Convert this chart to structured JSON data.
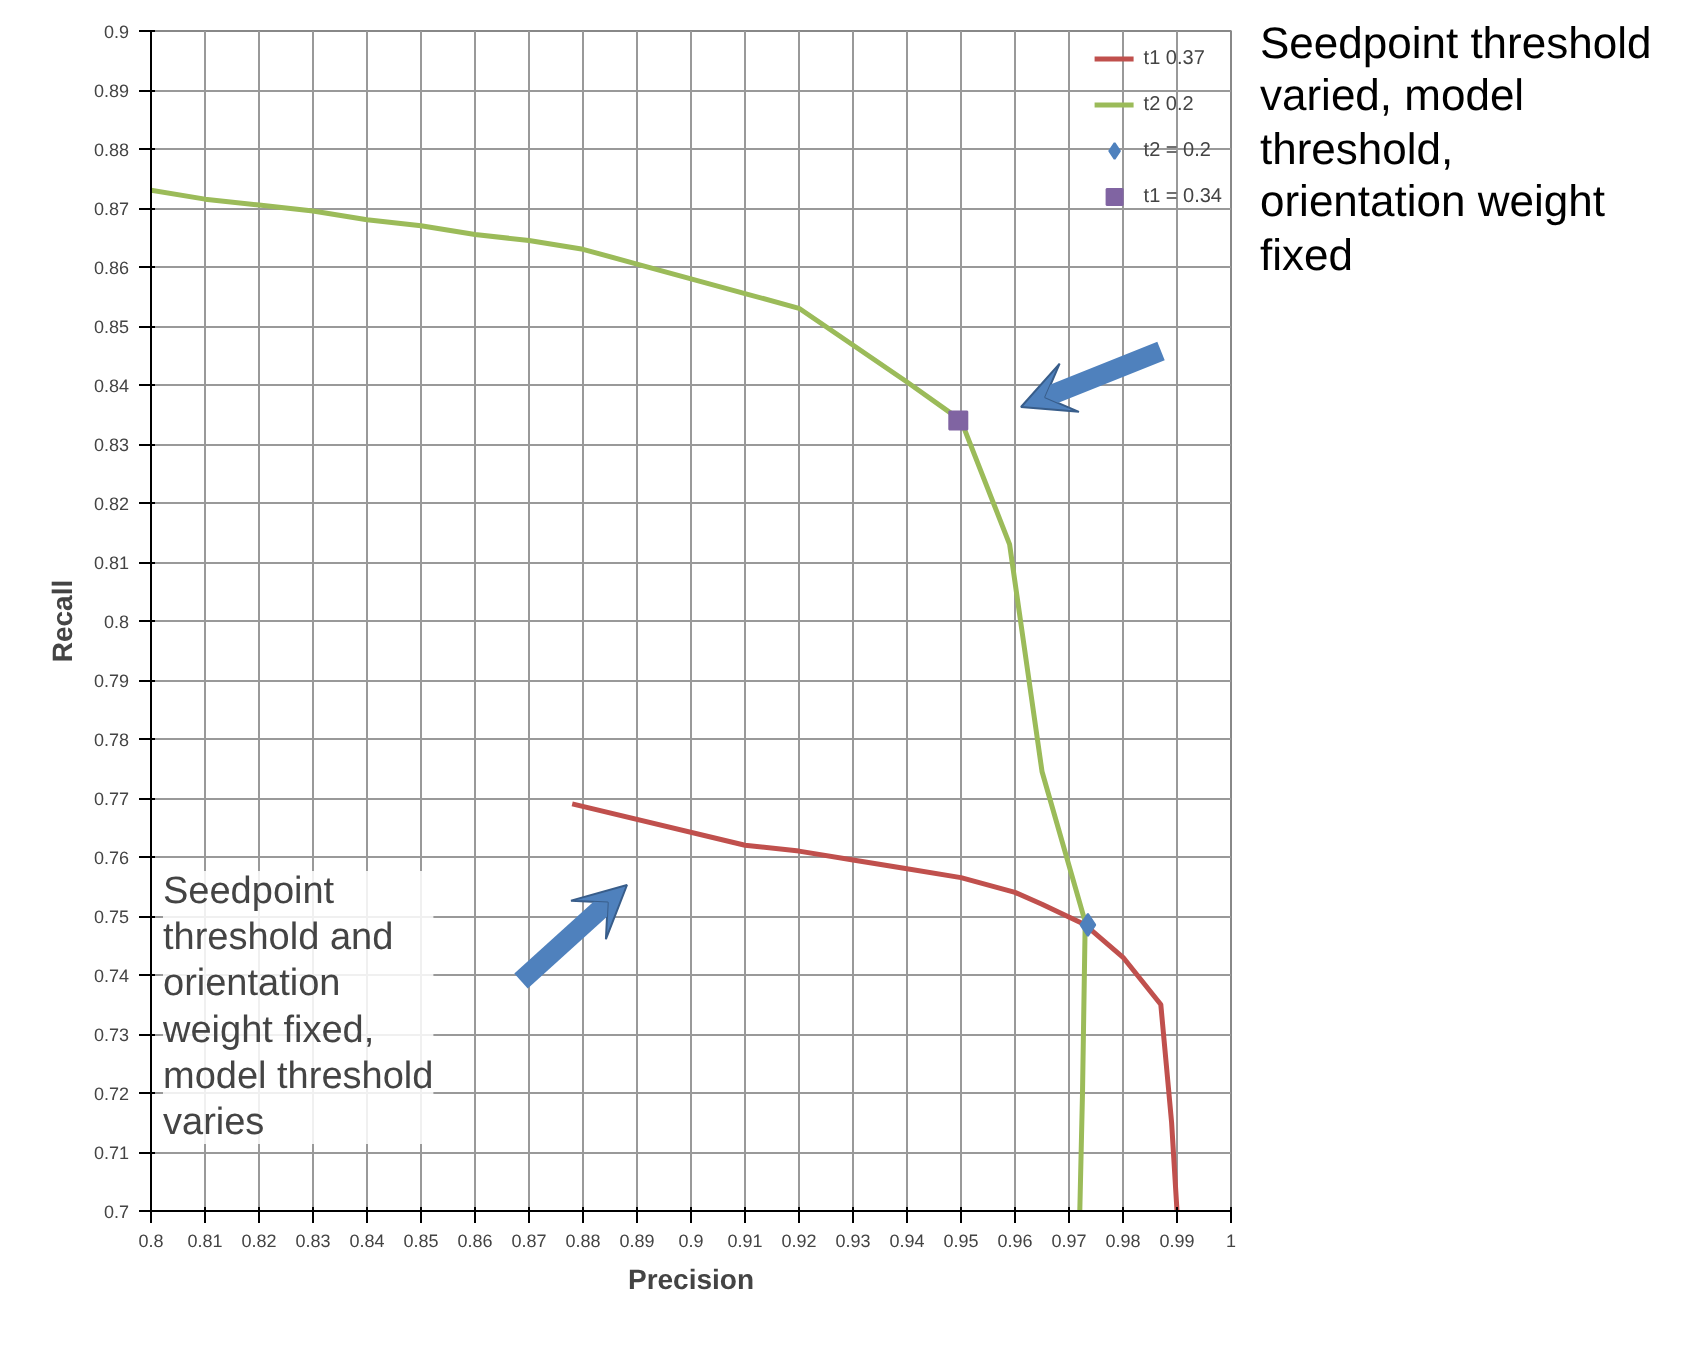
{
  "chart_data": {
    "type": "line",
    "xlabel": "Precision",
    "ylabel": "Recall",
    "xlim": [
      0.8,
      1
    ],
    "ylim": [
      0.7,
      0.9
    ],
    "xticks": [
      0.8,
      0.81,
      0.82,
      0.83,
      0.84,
      0.85,
      0.86,
      0.87,
      0.88,
      0.89,
      0.9,
      0.91,
      0.92,
      0.93,
      0.94,
      0.95,
      0.96,
      0.97,
      0.98,
      0.99,
      1
    ],
    "yticks": [
      0.7,
      0.71,
      0.72,
      0.73,
      0.74,
      0.75,
      0.76,
      0.77,
      0.78,
      0.79,
      0.8,
      0.81,
      0.82,
      0.83,
      0.84,
      0.85,
      0.86,
      0.87,
      0.88,
      0.89,
      0.9
    ],
    "grid": true,
    "legend": "top right",
    "series": [
      {
        "name": "t1 0.37",
        "color": "#c0504d",
        "x": [
          0.878,
          0.91,
          0.92,
          0.93,
          0.94,
          0.95,
          0.96,
          0.965,
          0.973,
          0.98,
          0.987,
          0.989,
          0.99
        ],
        "values": [
          0.769,
          0.762,
          0.761,
          0.7595,
          0.758,
          0.7565,
          0.754,
          0.752,
          0.7485,
          0.743,
          0.735,
          0.715,
          0.7
        ]
      },
      {
        "name": "t2 0.2",
        "color": "#9bbb59",
        "x": [
          0.8,
          0.81,
          0.82,
          0.83,
          0.84,
          0.85,
          0.86,
          0.87,
          0.88,
          0.89,
          0.9,
          0.91,
          0.92,
          0.94,
          0.95,
          0.959,
          0.965,
          0.973,
          0.9725,
          0.972
        ],
        "values": [
          0.873,
          0.8715,
          0.8705,
          0.8695,
          0.868,
          0.867,
          0.8655,
          0.8645,
          0.863,
          0.8605,
          0.858,
          0.8555,
          0.853,
          0.8405,
          0.834,
          0.813,
          0.7745,
          0.749,
          0.72,
          0.7
        ]
      },
      {
        "name": "t2 = 0.2",
        "type": "scatter",
        "marker": "diamond",
        "color": "#4f81bd",
        "x": [
          0.9735
        ],
        "values": [
          0.7485
        ]
      },
      {
        "name": "t1 = 0.34",
        "type": "scatter",
        "marker": "square",
        "color": "#8064a2",
        "x": [
          0.9495
        ],
        "values": [
          0.834
        ]
      }
    ],
    "annotations": [
      "Seedpoint threshold varied, model threshold, orientation weight fixed",
      "Seedpoint threshold and orientation weight fixed, model threshold varies"
    ]
  }
}
